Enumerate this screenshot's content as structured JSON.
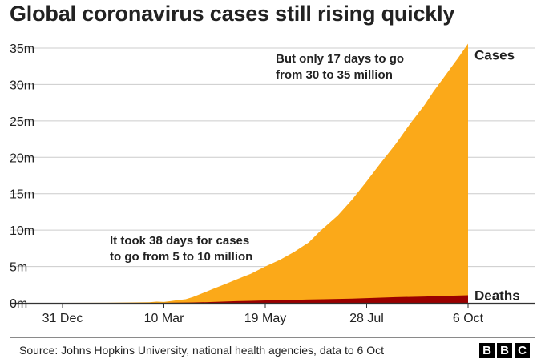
{
  "title": "Global coronavirus cases still rising quickly",
  "chart_data": {
    "type": "area",
    "title": "Global coronavirus cases still rising quickly",
    "xlabel": "",
    "ylabel": "",
    "ylim": [
      0,
      35
    ],
    "y_unit": "million",
    "y_ticks": [
      "0m",
      "5m",
      "10m",
      "15m",
      "20m",
      "25m",
      "30m",
      "35m"
    ],
    "x_ticks": [
      {
        "label": "31 Dec",
        "day": 0
      },
      {
        "label": "10 Mar",
        "day": 70
      },
      {
        "label": "19 May",
        "day": 140
      },
      {
        "label": "28 Jul",
        "day": 210
      },
      {
        "label": "6 Oct",
        "day": 280
      }
    ],
    "x_unit": "days since 31 Dec",
    "grid": true,
    "series": [
      {
        "name": "Cases",
        "color": "#fba919",
        "points": [
          [
            0,
            0
          ],
          [
            30,
            0.01
          ],
          [
            60,
            0.09
          ],
          [
            65,
            0.17
          ],
          [
            70,
            0.12
          ],
          [
            75,
            0.25
          ],
          [
            80,
            0.38
          ],
          [
            85,
            0.5
          ],
          [
            90,
            0.8
          ],
          [
            95,
            1.2
          ],
          [
            100,
            1.6
          ],
          [
            105,
            2.0
          ],
          [
            110,
            2.4
          ],
          [
            115,
            2.8
          ],
          [
            120,
            3.2
          ],
          [
            125,
            3.6
          ],
          [
            130,
            4.0
          ],
          [
            135,
            4.5
          ],
          [
            140,
            5.0
          ],
          [
            150,
            5.9
          ],
          [
            160,
            7.0
          ],
          [
            170,
            8.3
          ],
          [
            178,
            9.9
          ],
          [
            190,
            12.0
          ],
          [
            200,
            14.2
          ],
          [
            210,
            16.7
          ],
          [
            220,
            19.3
          ],
          [
            230,
            21.8
          ],
          [
            240,
            24.6
          ],
          [
            250,
            27.2
          ],
          [
            256,
            29.0
          ],
          [
            263,
            30.9
          ],
          [
            270,
            32.8
          ],
          [
            273,
            33.6
          ],
          [
            280,
            35.6
          ]
        ]
      },
      {
        "name": "Deaths",
        "color": "#990000",
        "points": [
          [
            0,
            0
          ],
          [
            60,
            0.003
          ],
          [
            70,
            0.004
          ],
          [
            80,
            0.02
          ],
          [
            90,
            0.05
          ],
          [
            100,
            0.1
          ],
          [
            110,
            0.17
          ],
          [
            120,
            0.23
          ],
          [
            130,
            0.28
          ],
          [
            140,
            0.33
          ],
          [
            160,
            0.42
          ],
          [
            180,
            0.49
          ],
          [
            200,
            0.57
          ],
          [
            210,
            0.65
          ],
          [
            230,
            0.78
          ],
          [
            250,
            0.87
          ],
          [
            270,
            0.99
          ],
          [
            280,
            1.05
          ]
        ]
      }
    ],
    "annotations": [
      {
        "lines": [
          "It took 38 days for cases",
          "to go from 5 to 10 million"
        ]
      },
      {
        "lines": [
          "But only 17 days to go",
          "from 30 to 35 million"
        ]
      }
    ]
  },
  "footer": {
    "source": "Source: Johns Hopkins University, national health agencies, data to 6 Oct",
    "logo": [
      "B",
      "B",
      "C"
    ]
  }
}
